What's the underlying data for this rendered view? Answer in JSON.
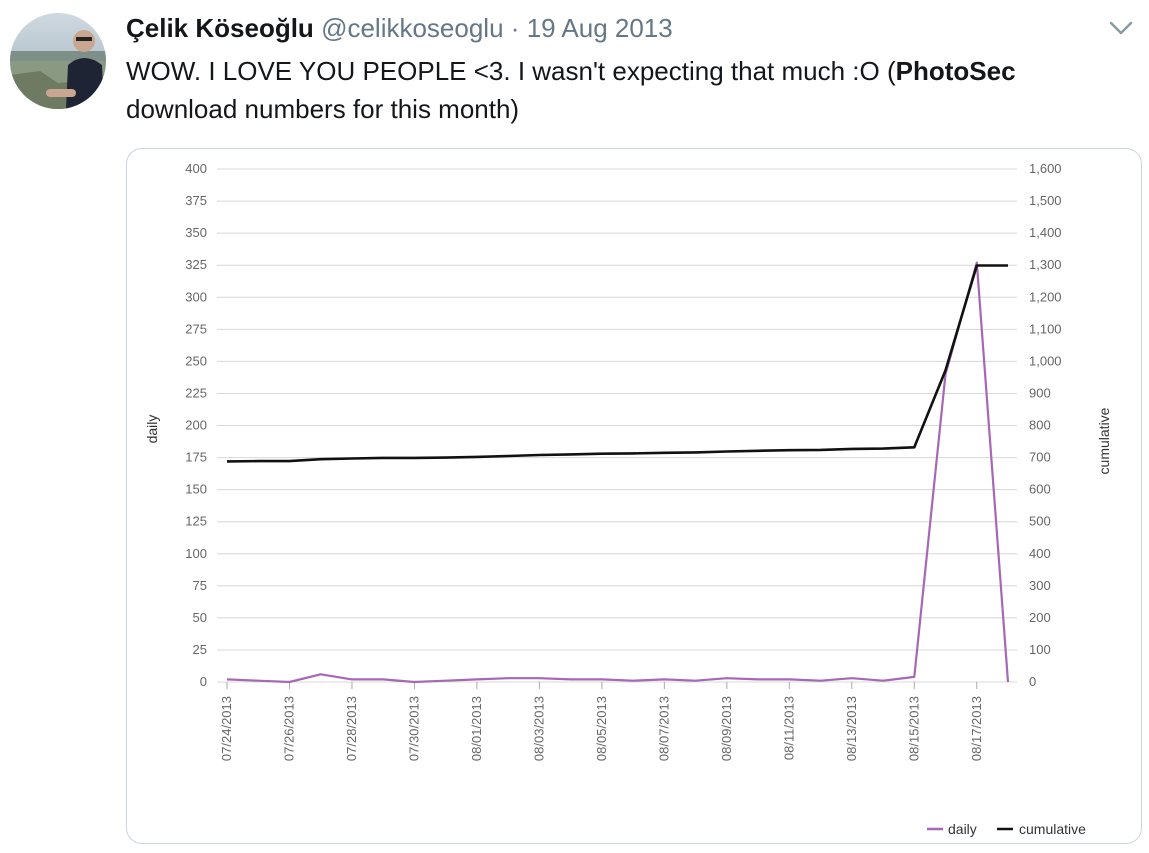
{
  "tweet": {
    "author_name": "Çelik Köseoğlu",
    "handle": "@celikkoseoglu",
    "separator": "·",
    "date": "19 Aug 2013",
    "text_before": "WOW. I LOVE YOU PEOPLE <3. I wasn't expecting that much :O (",
    "text_bold": "PhotoSec",
    "text_after": " download numbers for this month)",
    "menu_icon": "chevron-down-icon"
  },
  "colors": {
    "daily": "#a667b5",
    "cumulative": "#111111",
    "grid": "#d8d8d8",
    "handle": "#657786"
  },
  "chart_data": {
    "type": "line",
    "title": "",
    "xlabel": "",
    "ylabel": "daily",
    "y2label": "cumulative",
    "ylim": [
      0,
      400
    ],
    "y2lim": [
      0,
      1600
    ],
    "yticks": [
      "0",
      "25",
      "50",
      "75",
      "100",
      "125",
      "150",
      "175",
      "200",
      "225",
      "250",
      "275",
      "300",
      "325",
      "350",
      "375",
      "400"
    ],
    "y2ticks": [
      "0",
      "100",
      "200",
      "300",
      "400",
      "500",
      "600",
      "700",
      "800",
      "900",
      "1,000",
      "1,100",
      "1,200",
      "1,300",
      "1,400",
      "1,500",
      "1,600"
    ],
    "x": [
      "07/24/2013",
      "07/25/2013",
      "07/26/2013",
      "07/27/2013",
      "07/28/2013",
      "07/29/2013",
      "07/30/2013",
      "07/31/2013",
      "08/01/2013",
      "08/02/2013",
      "08/03/2013",
      "08/04/2013",
      "08/05/2013",
      "08/06/2013",
      "08/07/2013",
      "08/08/2013",
      "08/09/2013",
      "08/10/2013",
      "08/11/2013",
      "08/12/2013",
      "08/13/2013",
      "08/14/2013",
      "08/15/2013",
      "08/16/2013",
      "08/17/2013",
      "08/18/2013"
    ],
    "xticks": [
      "07/24/2013",
      "07/26/2013",
      "07/28/2013",
      "07/30/2013",
      "08/01/2013",
      "08/03/2013",
      "08/05/2013",
      "08/07/2013",
      "08/09/2013",
      "08/11/2013",
      "08/13/2013",
      "08/15/2013",
      "08/17/2013"
    ],
    "series": [
      {
        "name": "daily",
        "axis": "left",
        "values": [
          2,
          1,
          0,
          6,
          2,
          2,
          0,
          1,
          2,
          3,
          3,
          2,
          2,
          1,
          2,
          1,
          3,
          2,
          2,
          1,
          3,
          1,
          4,
          240,
          327,
          0
        ]
      },
      {
        "name": "cumulative",
        "axis": "right",
        "values": [
          688,
          689,
          689,
          695,
          697,
          699,
          699,
          700,
          702,
          705,
          708,
          710,
          712,
          713,
          715,
          716,
          719,
          721,
          723,
          724,
          727,
          728,
          732,
          972,
          1299,
          1299
        ]
      }
    ],
    "legend_position": "bottom-right",
    "grid": true
  }
}
